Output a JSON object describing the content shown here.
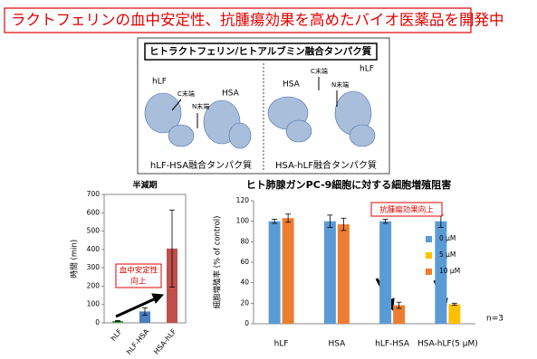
{
  "title": "ラクトフェリンの血中安定性、抗腫瘍効果を高めたバイオ医薬品を開発中",
  "figure": {
    "header": "ヒトラクトフェリン/ヒトアルブミン融合タンパク質",
    "left": {
      "labels": [
        "hLF",
        "C末端",
        "HSA",
        "N末端"
      ],
      "caption": "hLF-HSA融合タンパク質"
    },
    "right": {
      "labels": [
        "HSA",
        "C末端",
        "hLF",
        "N末端"
      ],
      "caption": "HSA-hLF融合タンパク質"
    }
  },
  "chart_data": [
    {
      "type": "bar",
      "title": "半減期",
      "y_label": "時間 (min)",
      "categories": [
        "hLF",
        "hLF-HSA",
        "HSA-hLF"
      ],
      "values": [
        10,
        62,
        405
      ],
      "errors": [
        3,
        20,
        210
      ],
      "colors": [
        "#3aa040",
        "#4a7fc1",
        "#c0504d"
      ],
      "ylim": [
        0,
        700
      ],
      "yticks": [
        0,
        100,
        200,
        300,
        400,
        500,
        600,
        700
      ],
      "annotation": [
        "血中安定性",
        "向上"
      ]
    },
    {
      "type": "grouped_bar",
      "title": "ヒト肺腺ガンPC-9細胞に対する細胞増殖阻害",
      "y_label": "細胞増殖率 (% of control)",
      "categories": [
        "hLF",
        "HSA",
        "hLF-HSA",
        "HSA-hLF(5 μM)"
      ],
      "series": [
        {
          "name": "0 μM",
          "color": "#5b9bd5",
          "values": [
            100,
            100,
            100,
            100
          ],
          "errors": [
            2,
            6,
            2,
            6
          ]
        },
        {
          "name": "5 μM",
          "color": "#ffc000",
          "values": [
            null,
            null,
            null,
            19
          ],
          "errors": [
            null,
            null,
            null,
            1
          ]
        },
        {
          "name": "10 μM",
          "color": "#ed7d31",
          "values": [
            103,
            97,
            18,
            null
          ],
          "errors": [
            4,
            6,
            3,
            null
          ]
        }
      ],
      "ylim": [
        0,
        120
      ],
      "yticks": [
        0,
        20,
        40,
        60,
        80,
        100,
        120
      ],
      "legend": "right",
      "annotations": [
        "抗腫瘍効果向上",
        "n=3"
      ]
    }
  ]
}
